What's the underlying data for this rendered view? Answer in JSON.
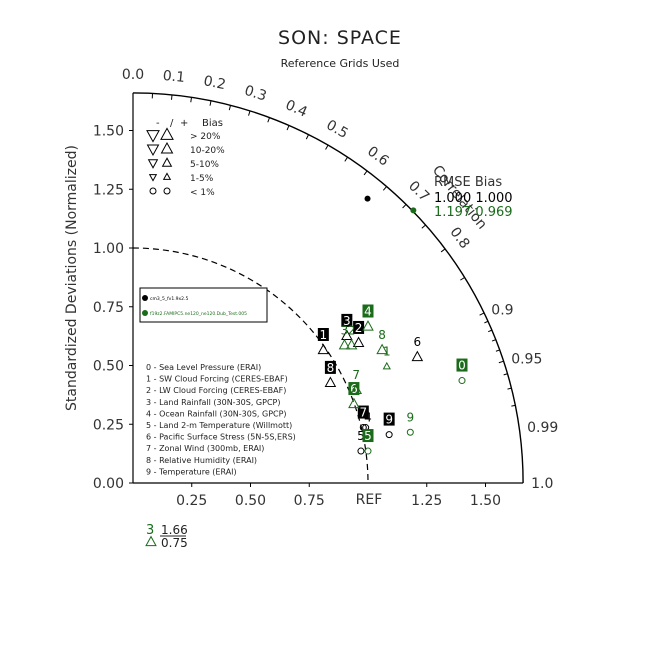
{
  "chart_data": {
    "type": "scatter",
    "diagram": "taylor",
    "title": "SON: SPACE",
    "subtitle": "Reference Grids Used",
    "ylabel": "Standardized Deviations (Normalized)",
    "corr_label": "Correlation",
    "ref_label": "REF",
    "rlim": [
      0,
      1.66
    ],
    "x_ticks": [
      "0.25",
      "0.50",
      "0.75",
      "1.25",
      "1.50"
    ],
    "x_tick_values": [
      0.25,
      0.5,
      0.75,
      1.25,
      1.5
    ],
    "y_ticks": [
      "0.00",
      "0.25",
      "0.50",
      "0.75",
      "1.00",
      "1.25",
      "1.50"
    ],
    "y_tick_values": [
      0,
      0.25,
      0.5,
      0.75,
      1.0,
      1.25,
      1.5
    ],
    "corr_ticks_outer": [
      {
        "label": "0.0",
        "r": 0.0
      },
      {
        "label": "0.1",
        "r": 0.1
      },
      {
        "label": "0.2",
        "r": 0.2
      },
      {
        "label": "0.3",
        "r": 0.3
      },
      {
        "label": "0.4",
        "r": 0.4
      },
      {
        "label": "0.5",
        "r": 0.5
      },
      {
        "label": "0.6",
        "r": 0.6
      },
      {
        "label": "0.7",
        "r": 0.7
      },
      {
        "label": "0.8",
        "r": 0.8
      }
    ],
    "corr_ticks_side": [
      {
        "label": "0.9",
        "r": 0.9
      },
      {
        "label": "0.95",
        "r": 0.95
      },
      {
        "label": "0.99",
        "r": 0.99
      },
      {
        "label": "1.0",
        "r": 1.0
      }
    ],
    "bias_legend": {
      "header": [
        "-",
        "/",
        "+",
        "Bias"
      ],
      "rows": [
        "> 20%",
        "10-20%",
        "5-10%",
        "1-5%",
        "< 1%"
      ]
    },
    "rmse_legend": {
      "header": "RMSE  Bias",
      "rows": [
        {
          "text": "1.000 1.000",
          "color": "#000000"
        },
        {
          "text": "1.197 0.969",
          "color": "#1a6b1a"
        }
      ]
    },
    "models": [
      {
        "name": "cm3_5_fv1.9x2.5",
        "color": "#000000"
      },
      {
        "name": "f19z2.FAMIPC5.ne120_ne120.Dub_Test.005",
        "color": "#1a6b1a"
      }
    ],
    "variables": [
      "0 - Sea Level Pressure (ERAI)",
      "1 - SW Cloud Forcing (CERES-EBAF)",
      "2 - LW Cloud Forcing (CERES-EBAF)",
      "3 - Land Rainfall (30N-30S, GPCP)",
      "4 - Ocean Rainfall (30N-30S, GPCP)",
      "5 - Land 2-m Temperature (Willmott)",
      "6 - Pacific Surface Stress (5N-5S,ERS)",
      "7 - Zonal Wind (300mb, ERAI)",
      "8 - Relative Humidity (ERAI)",
      "9 - Temperature (ERAI)"
    ],
    "series": [
      {
        "name": "cm3_5_fv1.9x2.5",
        "color": "#000000",
        "points": [
          {
            "id": "0",
            "x": 0.99,
            "y": 0.27,
            "marker": "circle",
            "boxed": false
          },
          {
            "id": "1",
            "x": 0.81,
            "y": 0.6,
            "marker": "up",
            "boxed": true
          },
          {
            "id": "2",
            "x": 0.96,
            "y": 0.63,
            "marker": "up",
            "boxed": true
          },
          {
            "id": "3",
            "x": 0.91,
            "y": 0.66,
            "marker": "up",
            "boxed": true
          },
          {
            "id": "4",
            "x": 1.0,
            "y": 0.25,
            "marker": "circle",
            "boxed": false
          },
          {
            "id": "5",
            "x": 0.97,
            "y": 0.17,
            "marker": "circle",
            "boxed": false
          },
          {
            "id": "6",
            "x": 1.21,
            "y": 0.57,
            "marker": "up",
            "boxed": false
          },
          {
            "id": "7",
            "x": 0.98,
            "y": 0.27,
            "marker": "circle",
            "boxed": true
          },
          {
            "id": "8",
            "x": 0.84,
            "y": 0.46,
            "marker": "up",
            "boxed": true
          },
          {
            "id": "9",
            "x": 1.09,
            "y": 0.24,
            "marker": "circle",
            "boxed": true
          }
        ]
      },
      {
        "name": "f19z2.FAMIPC5.ne120_ne120.Dub_Test.005",
        "color": "#1a6b1a",
        "points": [
          {
            "id": "0",
            "x": 1.4,
            "y": 0.47,
            "marker": "circle",
            "boxed": true
          },
          {
            "id": "1",
            "x": 1.08,
            "y": 0.53,
            "marker": "up-small",
            "boxed": false
          },
          {
            "id": "2",
            "x": 0.93,
            "y": 0.62,
            "marker": "up",
            "boxed": false
          },
          {
            "id": "3",
            "x": 0.9,
            "y": 0.62,
            "marker": "up",
            "boxed": false
          },
          {
            "id": "4",
            "x": 1.0,
            "y": 0.7,
            "marker": "up",
            "boxed": true
          },
          {
            "id": "5",
            "x": 1.0,
            "y": 0.17,
            "marker": "circle",
            "boxed": true
          },
          {
            "id": "6",
            "x": 0.94,
            "y": 0.37,
            "marker": "up",
            "boxed": true
          },
          {
            "id": "7",
            "x": 0.95,
            "y": 0.43,
            "marker": "up",
            "boxed": false
          },
          {
            "id": "8",
            "x": 1.06,
            "y": 0.6,
            "marker": "up",
            "boxed": false
          },
          {
            "id": "9",
            "x": 1.18,
            "y": 0.25,
            "marker": "circle",
            "boxed": false
          }
        ]
      }
    ],
    "ref_points": [
      {
        "x": 0.998,
        "y": 1.21,
        "color": "#000000"
      },
      {
        "x": 1.193,
        "y": 1.16,
        "color": "#1a6b1a"
      }
    ],
    "outlier": {
      "id": "3",
      "value": "1.66",
      "bias": "0.75",
      "color": "#1a6b1a"
    }
  }
}
